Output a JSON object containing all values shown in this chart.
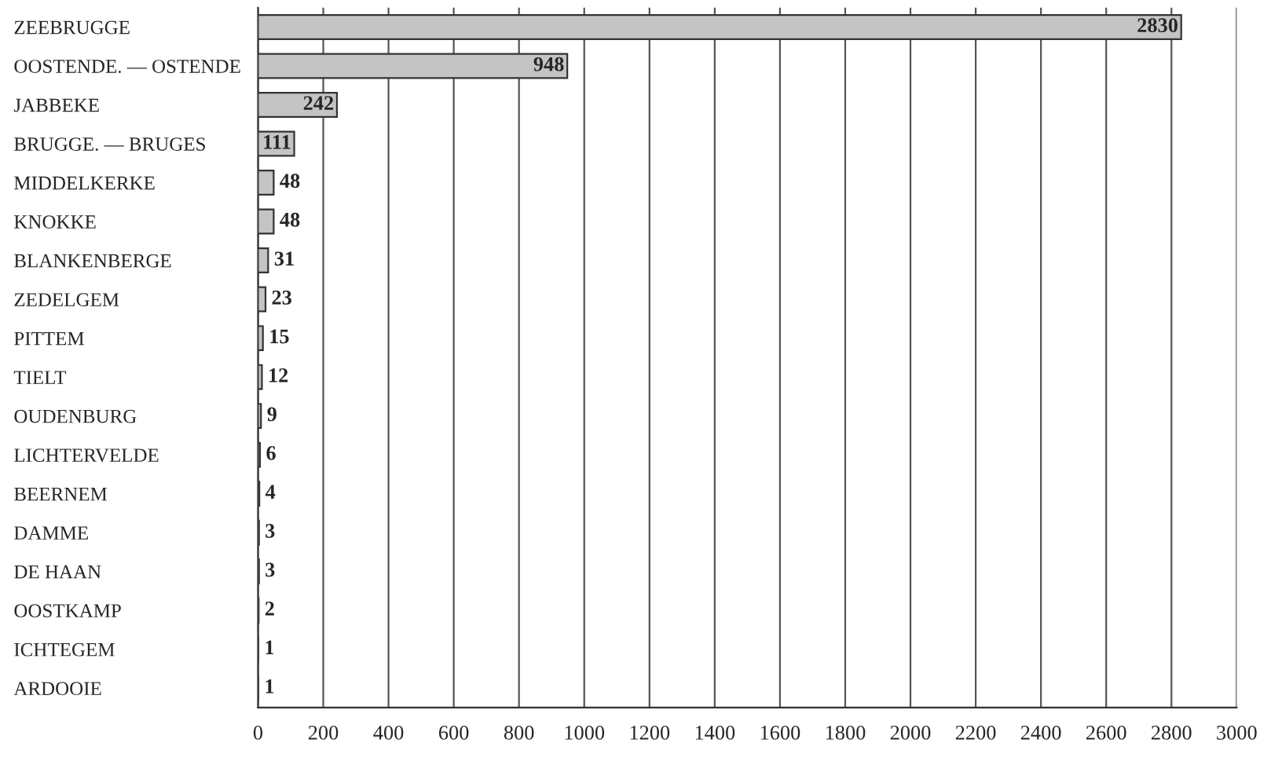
{
  "chart_data": {
    "type": "bar",
    "orientation": "horizontal",
    "categories": [
      "ZEEBRUGGE",
      "OOSTENDE. — OSTENDE",
      "JABBEKE",
      "BRUGGE. — BRUGES",
      "MIDDELKERKE",
      "KNOKKE",
      "BLANKENBERGE",
      "ZEDELGEM",
      "PITTEM",
      "TIELT",
      "OUDENBURG",
      "LICHTERVELDE",
      "BEERNEM",
      "DAMME",
      "DE HAAN",
      "OOSTKAMP",
      "ICHTEGEM",
      "ARDOOIE"
    ],
    "values": [
      2830,
      948,
      242,
      111,
      48,
      48,
      31,
      23,
      15,
      12,
      9,
      6,
      4,
      3,
      3,
      2,
      1,
      1
    ],
    "color": "#c4c4c4",
    "xlim": [
      0,
      3000
    ],
    "xticks": [
      0,
      200,
      400,
      600,
      800,
      1000,
      1200,
      1400,
      1600,
      1800,
      2000,
      2200,
      2400,
      2600,
      2800,
      3000
    ],
    "grid": "x",
    "data_labels": true
  }
}
